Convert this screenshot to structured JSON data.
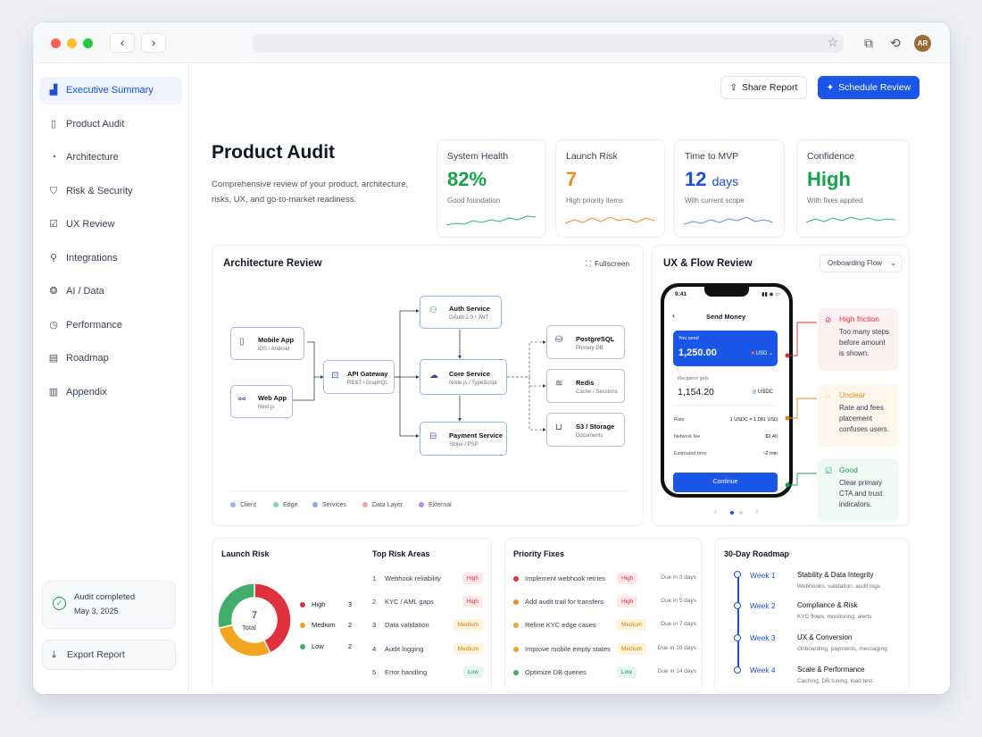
{
  "browser": {
    "avatar_initials": "AR"
  },
  "sidebar": {
    "items": [
      {
        "label": "Executive Summary",
        "icon": "summary-icon"
      },
      {
        "label": "Product Audit",
        "icon": "document-icon"
      },
      {
        "label": "Architecture",
        "icon": "architecture-icon"
      },
      {
        "label": "Risk & Security",
        "icon": "shield-icon"
      },
      {
        "label": "UX Review",
        "icon": "checklist-icon"
      },
      {
        "label": "Integrations",
        "icon": "wrench-icon"
      },
      {
        "label": "AI / Data",
        "icon": "brain-icon"
      },
      {
        "label": "Performance",
        "icon": "gauge-icon"
      },
      {
        "label": "Roadmap",
        "icon": "map-icon"
      },
      {
        "label": "Appendix",
        "icon": "appendix-icon"
      }
    ],
    "audit_status": {
      "title": "Audit completed",
      "date": "May 3, 2025"
    },
    "export_label": "Export Report"
  },
  "header": {
    "share_label": "Share Report",
    "schedule_label": "Schedule Review"
  },
  "hero": {
    "title": "Product Audit",
    "subtitle_line1": "Comprehensive review of your product, architecture,",
    "subtitle_line2": "risks, UX, and go-to-market readiness."
  },
  "stats": [
    {
      "label": "System Health",
      "value": "82%",
      "unit": "",
      "sub": "Good foundation",
      "color": "#16a34a"
    },
    {
      "label": "Launch Risk",
      "value": "7",
      "unit": "",
      "sub": "High priority items",
      "color": "#f08a24"
    },
    {
      "label": "Time to MVP",
      "value": "12",
      "unit": "days",
      "sub": "With current scope",
      "color": "#1d4fd8"
    },
    {
      "label": "Confidence",
      "value": "High",
      "unit": "",
      "sub": "With fixes applied",
      "color": "#16a34a"
    }
  ],
  "architecture": {
    "title": "Architecture Review",
    "fullscreen_label": "Fullscreen",
    "nodes": {
      "mobile": {
        "title": "Mobile App",
        "sub": "iOS / Android"
      },
      "web": {
        "title": "Web App",
        "sub": "Next.js"
      },
      "gateway": {
        "title": "API Gateway",
        "sub": "REST / GraphQL"
      },
      "auth": {
        "title": "Auth Service",
        "sub": "OAuth 2.0 / JWT"
      },
      "core": {
        "title": "Core Service",
        "sub": "Node.js / TypeScript"
      },
      "payment": {
        "title": "Payment Service",
        "sub": "Stripe / PSP"
      },
      "postgres": {
        "title": "PostgreSQL",
        "sub": "Primary DB"
      },
      "redis": {
        "title": "Redis",
        "sub": "Cache / Sessions"
      },
      "s3": {
        "title": "S3 / Storage",
        "sub": "Documents"
      }
    },
    "legend": [
      {
        "label": "Client",
        "color": "#93b4f5"
      },
      {
        "label": "Edge",
        "color": "#86d6a6"
      },
      {
        "label": "Services",
        "color": "#7fb0ee"
      },
      {
        "label": "Data Layer",
        "color": "#f1a3a3"
      },
      {
        "label": "External",
        "color": "#b48ee8"
      }
    ]
  },
  "ux": {
    "title": "UX & Flow Review",
    "dropdown": "Onboarding Flow",
    "phone": {
      "time": "9:41",
      "screen_title": "Send Money",
      "you_send_label": "You send",
      "you_send_value": "1,250.00",
      "you_send_currency": "USD",
      "recipient_label": "Recipient gets",
      "recipient_value": "1,154.20",
      "recipient_currency": "USDC",
      "rate_label": "Rate",
      "rate_value": "1 USDC = 1.081 USD",
      "fee_label": "Network fee",
      "fee_value": "$2.40",
      "time_label": "Estimated time",
      "time_value": "~2 min",
      "cta": "Continue"
    },
    "callouts": [
      {
        "title": "High friction",
        "text": "Too many steps before amount is shown.",
        "color": "#d92d3a",
        "bg": "#fdf0f1"
      },
      {
        "title": "Unclear",
        "text": "Rate and fees placement confuses users.",
        "color": "#e08a12",
        "bg": "#fff7ec"
      },
      {
        "title": "Good",
        "text": "Clear primary CTA and trust indicators.",
        "color": "#16a34a",
        "bg": "#f0f9f3"
      }
    ]
  },
  "launch_risk": {
    "title": "Launch Risk",
    "total": "7",
    "total_label": "Total",
    "chart_data": {
      "type": "pie",
      "categories": [
        "High",
        "Medium",
        "Low"
      ],
      "values": [
        3,
        2,
        2
      ],
      "colors": [
        "#e0313f",
        "#f3a521",
        "#3fae6a"
      ]
    }
  },
  "top_risks": {
    "title": "Top Risk Areas",
    "items": [
      {
        "n": "1",
        "label": "Webhook reliability",
        "level": "High",
        "cls": "high"
      },
      {
        "n": "2",
        "label": "KYC / AML gaps",
        "level": "High",
        "cls": "high"
      },
      {
        "n": "3",
        "label": "Data validation",
        "level": "Medium",
        "cls": "med"
      },
      {
        "n": "4",
        "label": "Audit logging",
        "level": "Medium",
        "cls": "med"
      },
      {
        "n": "5",
        "label": "Error handling",
        "level": "Low",
        "cls": "low"
      }
    ]
  },
  "fixes": {
    "title": "Priority Fixes",
    "items": [
      {
        "label": "Implement webhook retries",
        "level": "High",
        "cls": "high",
        "due": "Due in 3 days",
        "color": "#e0313f"
      },
      {
        "label": "Add audit trail for transfers",
        "level": "High",
        "cls": "high",
        "due": "Due in 5 days",
        "color": "#f08a24"
      },
      {
        "label": "Refine KYC edge cases",
        "level": "Medium",
        "cls": "med",
        "due": "Due in 7 days",
        "color": "#f3a521"
      },
      {
        "label": "Improve mobile empty states",
        "level": "Medium",
        "cls": "med",
        "due": "Due in 10 days",
        "color": "#f3a521"
      },
      {
        "label": "Optimize DB queries",
        "level": "Low",
        "cls": "low",
        "due": "Due in 14 days",
        "color": "#3fae6a"
      }
    ]
  },
  "roadmap": {
    "title": "30-Day Roadmap",
    "weeks": [
      {
        "week": "Week 1",
        "title": "Stability & Data Integrity",
        "sub": "Webhooks, validation, audit logs"
      },
      {
        "week": "Week 2",
        "title": "Compliance & Risk",
        "sub": "KYC flows, monitoring, alerts"
      },
      {
        "week": "Week 3",
        "title": "UX & Conversion",
        "sub": "Onboarding, payments, messaging"
      },
      {
        "week": "Week 4",
        "title": "Scale & Performance",
        "sub": "Caching, DB tuning, load test"
      }
    ]
  }
}
